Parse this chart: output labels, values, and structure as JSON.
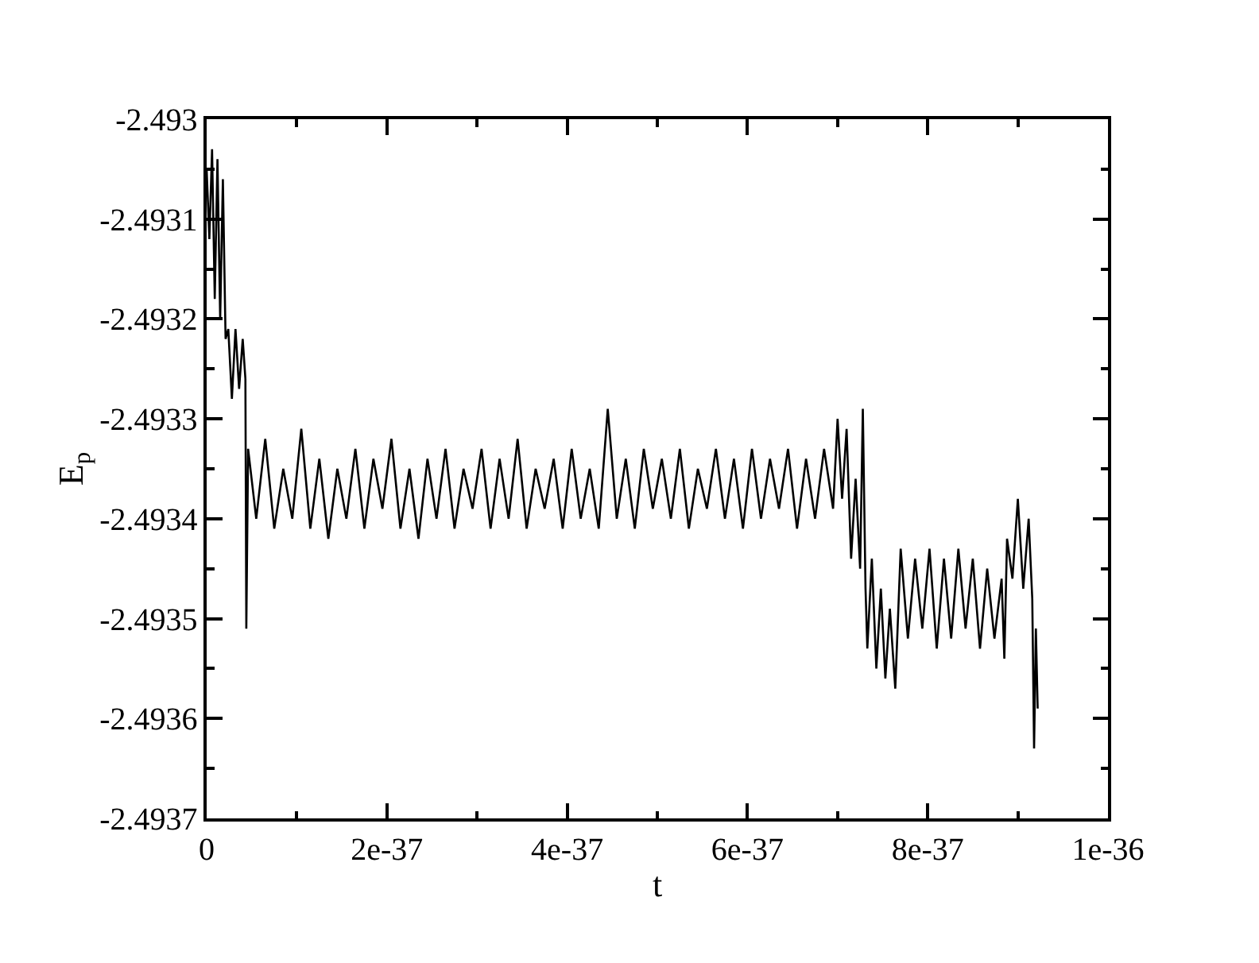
{
  "chart_data": {
    "type": "line",
    "xlabel": "t",
    "ylabel": "E$_{p}$",
    "xlim": [
      0,
      1e-36
    ],
    "xticks": [
      0,
      {
        "value": 1e-37,
        "label": null
      },
      {
        "value": 2e-37,
        "label": "2e-37"
      },
      {
        "value": 3e-37,
        "label": null
      },
      {
        "value": 4e-37,
        "label": "4e-37"
      },
      {
        "value": 5e-37,
        "label": null
      },
      {
        "value": 6e-37,
        "label": "6e-37"
      },
      {
        "value": 7e-37,
        "label": null
      },
      {
        "value": 8e-37,
        "label": "8e-37"
      },
      {
        "value": 9e-37,
        "label": null
      },
      {
        "value": 1e-36,
        "label": "1e-36"
      }
    ],
    "ylim": [
      -2.4937,
      -2.493
    ],
    "yticks": [
      -2.4937,
      {
        "value": -2.49365,
        "label": null
      },
      -2.4936,
      {
        "value": -2.49355,
        "label": null
      },
      -2.4935,
      {
        "value": -2.49345,
        "label": null
      },
      -2.4934,
      {
        "value": -2.49335,
        "label": null
      },
      -2.4933,
      {
        "value": -2.49325,
        "label": null
      },
      -2.4932,
      {
        "value": -2.49315,
        "label": null
      },
      -2.4931,
      {
        "value": -2.49305,
        "label": null
      },
      -2.493
    ],
    "marker": "none",
    "line_style": "solid",
    "series": [
      {
        "color": "#000000",
        "x": [
          0,
          3e-39,
          6e-39,
          9e-39,
          1.2e-38,
          1.5e-38,
          1.8e-38,
          2.1e-38,
          2.4e-38,
          2.8e-38,
          3.2e-38,
          3.6e-38,
          4e-38,
          4.3e-38,
          4.4e-38,
          4.6e-38,
          5.5e-38,
          6.5e-38,
          7.5e-38,
          8.5e-38,
          9.5e-38,
          1.05e-37,
          1.15e-37,
          1.25e-37,
          1.35e-37,
          1.45e-37,
          1.55e-37,
          1.65e-37,
          1.75e-37,
          1.85e-37,
          1.95e-37,
          2.05e-37,
          2.15e-37,
          2.25e-37,
          2.35e-37,
          2.45e-37,
          2.55e-37,
          2.65e-37,
          2.75e-37,
          2.85e-37,
          2.95e-37,
          3.05e-37,
          3.15e-37,
          3.25e-37,
          3.35e-37,
          3.45e-37,
          3.55e-37,
          3.65e-37,
          3.75e-37,
          3.85e-37,
          3.95e-37,
          4.05e-37,
          4.15e-37,
          4.25e-37,
          4.35e-37,
          4.45e-37,
          4.55e-37,
          4.65e-37,
          4.75e-37,
          4.85e-37,
          4.95e-37,
          5.05e-37,
          5.15e-37,
          5.25e-37,
          5.35e-37,
          5.45e-37,
          5.55e-37,
          5.65e-37,
          5.75e-37,
          5.85e-37,
          5.95e-37,
          6.05e-37,
          6.15e-37,
          6.25e-37,
          6.35e-37,
          6.45e-37,
          6.55e-37,
          6.65e-37,
          6.75e-37,
          6.85e-37,
          6.95e-37,
          7e-37,
          7.05e-37,
          7.1e-37,
          7.15e-37,
          7.2e-37,
          7.25e-37,
          7.28e-37,
          7.31e-37,
          7.33e-37,
          7.38e-37,
          7.43e-37,
          7.48e-37,
          7.53e-37,
          7.58e-37,
          7.64e-37,
          7.7e-37,
          7.78e-37,
          7.86e-37,
          7.94e-37,
          8.02e-37,
          8.1e-37,
          8.18e-37,
          8.26e-37,
          8.34e-37,
          8.42e-37,
          8.5e-37,
          8.58e-37,
          8.66e-37,
          8.74e-37,
          8.82e-37,
          8.85e-37,
          8.88e-37,
          8.94e-37,
          9e-37,
          9.06e-37,
          9.12e-37,
          9.16e-37,
          9.18e-37,
          9.2e-37,
          9.22e-37
        ],
        "values": [
          -2.49305,
          -2.49312,
          -2.49303,
          -2.49318,
          -2.49304,
          -2.4932,
          -2.49306,
          -2.49322,
          -2.49321,
          -2.49328,
          -2.49321,
          -2.49327,
          -2.49322,
          -2.49326,
          -2.49351,
          -2.49333,
          -2.4934,
          -2.49332,
          -2.49341,
          -2.49335,
          -2.4934,
          -2.49331,
          -2.49341,
          -2.49334,
          -2.49342,
          -2.49335,
          -2.4934,
          -2.49333,
          -2.49341,
          -2.49334,
          -2.49339,
          -2.49332,
          -2.49341,
          -2.49335,
          -2.49342,
          -2.49334,
          -2.4934,
          -2.49333,
          -2.49341,
          -2.49335,
          -2.49339,
          -2.49333,
          -2.49341,
          -2.49334,
          -2.4934,
          -2.49332,
          -2.49341,
          -2.49335,
          -2.49339,
          -2.49334,
          -2.49341,
          -2.49333,
          -2.4934,
          -2.49335,
          -2.49341,
          -2.49329,
          -2.4934,
          -2.49334,
          -2.49341,
          -2.49333,
          -2.49339,
          -2.49334,
          -2.4934,
          -2.49333,
          -2.49341,
          -2.49335,
          -2.49339,
          -2.49333,
          -2.4934,
          -2.49334,
          -2.49341,
          -2.49333,
          -2.4934,
          -2.49334,
          -2.49339,
          -2.49333,
          -2.49341,
          -2.49334,
          -2.4934,
          -2.49333,
          -2.49339,
          -2.4933,
          -2.49338,
          -2.49331,
          -2.49344,
          -2.49336,
          -2.49345,
          -2.49329,
          -2.49347,
          -2.49353,
          -2.49344,
          -2.49355,
          -2.49347,
          -2.49356,
          -2.49349,
          -2.49357,
          -2.49343,
          -2.49352,
          -2.49344,
          -2.49351,
          -2.49343,
          -2.49353,
          -2.49344,
          -2.49352,
          -2.49343,
          -2.49351,
          -2.49344,
          -2.49353,
          -2.49345,
          -2.49352,
          -2.49346,
          -2.49354,
          -2.49342,
          -2.49346,
          -2.49338,
          -2.49347,
          -2.4934,
          -2.49348,
          -2.49363,
          -2.49351,
          -2.49359
        ]
      }
    ]
  }
}
